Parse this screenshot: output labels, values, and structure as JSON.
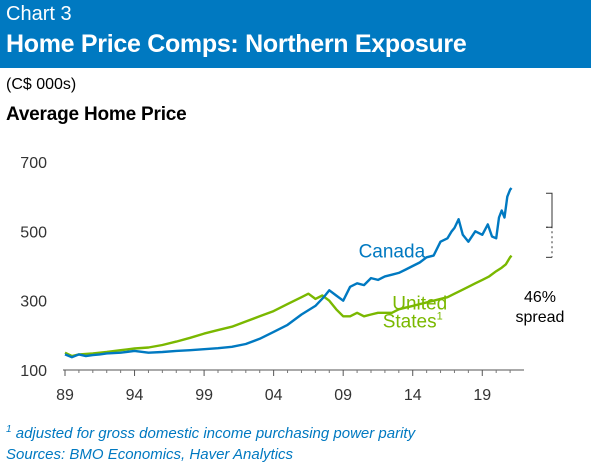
{
  "header": {
    "chart_number": "Chart 3",
    "title": "Home Price Comps: Northern Exposure"
  },
  "footer": {
    "footnote_marker": "1",
    "footnote": "adjusted for gross domestic income purchasing power parity",
    "sources": "Sources: BMO Economics, Haver Analytics"
  },
  "chart_data": {
    "type": "line",
    "title": "Average Home Price",
    "units": "(C$ 000s)",
    "xlim": [
      1989,
      2022
    ],
    "ylim": [
      100,
      700
    ],
    "x_ticks": [
      {
        "value": 1989,
        "label": "89"
      },
      {
        "value": 1994,
        "label": "94"
      },
      {
        "value": 1999,
        "label": "99"
      },
      {
        "value": 2004,
        "label": "04"
      },
      {
        "value": 2009,
        "label": "09"
      },
      {
        "value": 2014,
        "label": "14"
      },
      {
        "value": 2019,
        "label": "19"
      }
    ],
    "y_ticks": [
      100,
      300,
      500,
      700
    ],
    "grid": false,
    "series": [
      {
        "name": "Canada",
        "color": "#0079c1",
        "x": [
          1989.0,
          1989.5,
          1990.0,
          1990.5,
          1991.0,
          1991.5,
          1992.0,
          1993.0,
          1994.0,
          1995.0,
          1996.0,
          1997.0,
          1998.0,
          1999.0,
          2000.0,
          2001.0,
          2002.0,
          2003.0,
          2004.0,
          2005.0,
          2006.0,
          2007.0,
          2007.6,
          2008.0,
          2008.5,
          2009.0,
          2009.5,
          2010.0,
          2010.5,
          2011.0,
          2011.5,
          2012.0,
          2012.5,
          2013.0,
          2013.5,
          2014.0,
          2014.5,
          2015.0,
          2015.5,
          2016.0,
          2016.5,
          2016.8,
          2017.0,
          2017.3,
          2017.6,
          2018.0,
          2018.5,
          2019.0,
          2019.4,
          2019.7,
          2020.0,
          2020.2,
          2020.4,
          2020.6,
          2020.8,
          2021.0,
          2021.1
        ],
        "values": [
          145,
          137,
          145,
          140,
          143,
          145,
          148,
          150,
          155,
          150,
          152,
          155,
          157,
          160,
          163,
          167,
          175,
          190,
          210,
          230,
          260,
          285,
          310,
          330,
          315,
          300,
          340,
          350,
          345,
          365,
          360,
          370,
          375,
          380,
          390,
          400,
          410,
          425,
          430,
          470,
          480,
          500,
          510,
          535,
          490,
          470,
          500,
          490,
          520,
          485,
          480,
          540,
          560,
          540,
          600,
          620,
          625
        ]
      },
      {
        "name": "United States",
        "footnote_marker": "1",
        "color": "#7ab800",
        "x": [
          1989.0,
          1989.5,
          1990.0,
          1991.0,
          1992.0,
          1993.0,
          1994.0,
          1995.0,
          1996.0,
          1997.0,
          1998.0,
          1999.0,
          2000.0,
          2001.0,
          2002.0,
          2003.0,
          2004.0,
          2005.0,
          2006.0,
          2006.5,
          2007.0,
          2007.5,
          2008.0,
          2008.5,
          2009.0,
          2009.5,
          2010.0,
          2010.5,
          2011.0,
          2011.5,
          2012.0,
          2012.5,
          2013.0,
          2013.5,
          2014.0,
          2014.5,
          2015.0,
          2015.5,
          2016.0,
          2016.5,
          2017.0,
          2017.5,
          2018.0,
          2018.5,
          2019.0,
          2019.5,
          2020.0,
          2020.4,
          2020.7,
          2021.0,
          2021.1
        ],
        "values": [
          150,
          140,
          145,
          148,
          152,
          157,
          162,
          165,
          172,
          182,
          193,
          205,
          215,
          225,
          240,
          255,
          270,
          290,
          310,
          320,
          305,
          315,
          300,
          275,
          255,
          255,
          265,
          255,
          260,
          265,
          265,
          265,
          275,
          280,
          285,
          290,
          295,
          300,
          305,
          310,
          320,
          330,
          340,
          350,
          360,
          370,
          385,
          395,
          405,
          425,
          430
        ]
      }
    ],
    "labels": [
      {
        "text": "Canada",
        "series": "Canada",
        "x": 2012.5,
        "y": 425
      },
      {
        "text": "United",
        "series": "United States",
        "x": 2014.5,
        "y": 275
      },
      {
        "text": "States",
        "series": "United States",
        "x": 2014,
        "y": 222,
        "marker": "1"
      }
    ],
    "annotation": {
      "from_value": 610,
      "to_value": 425,
      "line1": "46%",
      "line2": "spread"
    }
  }
}
